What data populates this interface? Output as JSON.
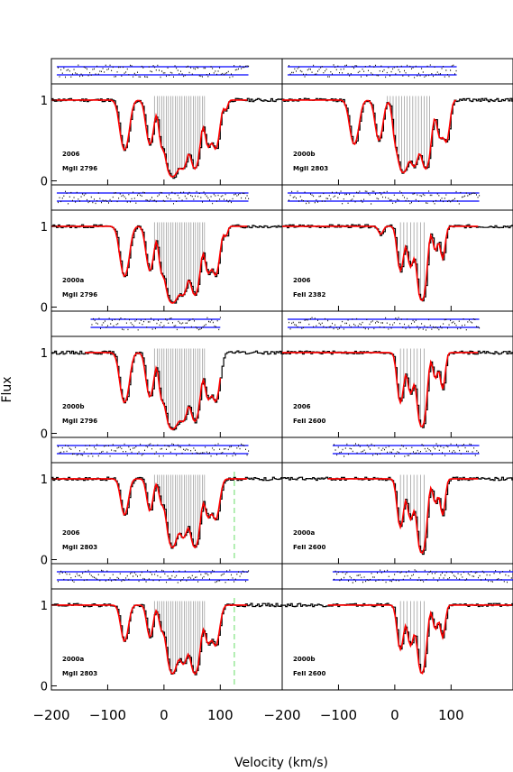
{
  "chart_data": {
    "type": "line",
    "xlabel": "Velocity (km/s)",
    "ylabel": "Flux",
    "xlim": [
      -200,
      210
    ],
    "ylim": [
      -0.05,
      1.2
    ],
    "yticks": [
      "0",
      "1"
    ],
    "xticks": [
      -200,
      -100,
      0,
      100
    ],
    "colors": {
      "data": "#000000",
      "model": "#ff0000",
      "residual_band": "#0000ff",
      "components": "#808080",
      "marker": "#66dd66"
    },
    "panels": [
      {
        "epoch": "2006",
        "ion": "MgII",
        "wavelength": "2796",
        "column": "left",
        "row": 0,
        "residual_range": [
          -200,
          150
        ],
        "components": [
          -17,
          -12,
          -8,
          -4,
          0,
          4,
          8,
          12,
          16,
          20,
          24,
          28,
          32,
          36,
          40,
          44,
          48,
          52,
          56,
          60,
          64,
          68,
          72
        ],
        "absorption": [
          {
            "v": -70,
            "depth": 0.62,
            "width": 7
          },
          {
            "v": -25,
            "depth": 0.55,
            "width": 6
          },
          {
            "v": -5,
            "depth": 0.45,
            "width": 4
          },
          {
            "v": 15,
            "depth": 0.95,
            "width": 9
          },
          {
            "v": 35,
            "depth": 0.8,
            "width": 6
          },
          {
            "v": 55,
            "depth": 0.85,
            "width": 7
          },
          {
            "v": 78,
            "depth": 0.55,
            "width": 5
          },
          {
            "v": 92,
            "depth": 0.6,
            "width": 6
          },
          {
            "v": 110,
            "depth": 0.12,
            "width": 3
          }
        ]
      },
      {
        "epoch": "2000b",
        "ion": "MgII",
        "wavelength": "2803",
        "column": "right",
        "row": 0,
        "residual_range": [
          -200,
          110
        ],
        "components": [
          -13,
          -8,
          -3,
          2,
          7,
          12,
          17,
          22,
          27,
          32,
          37,
          42,
          47,
          52,
          57,
          62
        ],
        "absorption": [
          {
            "v": -72,
            "depth": 0.55,
            "width": 7
          },
          {
            "v": -28,
            "depth": 0.5,
            "width": 6
          },
          {
            "v": 0,
            "depth": 0.3,
            "width": 4
          },
          {
            "v": 15,
            "depth": 0.9,
            "width": 8
          },
          {
            "v": 35,
            "depth": 0.8,
            "width": 6
          },
          {
            "v": 55,
            "depth": 0.85,
            "width": 7
          },
          {
            "v": 80,
            "depth": 0.45,
            "width": 5
          },
          {
            "v": 92,
            "depth": 0.5,
            "width": 5
          }
        ]
      },
      {
        "epoch": "2000a",
        "ion": "MgII",
        "wavelength": "2796",
        "column": "left",
        "row": 1,
        "residual_range": [
          -200,
          150
        ],
        "components": [
          -17,
          -12,
          -8,
          -4,
          0,
          4,
          8,
          12,
          16,
          20,
          24,
          28,
          32,
          36,
          40,
          44,
          48,
          52,
          56,
          60,
          64,
          68,
          72
        ],
        "absorption": [
          {
            "v": -70,
            "depth": 0.62,
            "width": 7
          },
          {
            "v": -25,
            "depth": 0.55,
            "width": 6
          },
          {
            "v": -5,
            "depth": 0.45,
            "width": 4
          },
          {
            "v": 15,
            "depth": 0.95,
            "width": 9
          },
          {
            "v": 35,
            "depth": 0.8,
            "width": 6
          },
          {
            "v": 55,
            "depth": 0.85,
            "width": 7
          },
          {
            "v": 78,
            "depth": 0.55,
            "width": 5
          },
          {
            "v": 92,
            "depth": 0.6,
            "width": 6
          },
          {
            "v": 110,
            "depth": 0.12,
            "width": 3
          }
        ]
      },
      {
        "epoch": "2006",
        "ion": "FeII",
        "wavelength": "2382",
        "column": "right",
        "row": 1,
        "residual_range": [
          -200,
          150
        ],
        "components": [
          10,
          16,
          22,
          28,
          34,
          40,
          46,
          52
        ],
        "absorption": [
          {
            "v": -25,
            "depth": 0.1,
            "width": 4
          },
          {
            "v": 10,
            "depth": 0.55,
            "width": 5
          },
          {
            "v": 28,
            "depth": 0.5,
            "width": 5
          },
          {
            "v": 48,
            "depth": 0.92,
            "width": 6
          },
          {
            "v": 72,
            "depth": 0.3,
            "width": 4
          },
          {
            "v": 85,
            "depth": 0.4,
            "width": 4
          }
        ]
      },
      {
        "epoch": "2000b",
        "ion": "MgII",
        "wavelength": "2796",
        "column": "left",
        "row": 2,
        "residual_range": [
          -140,
          100
        ],
        "components": [
          -17,
          -12,
          -8,
          -4,
          0,
          4,
          8,
          12,
          16,
          20,
          24,
          28,
          32,
          36,
          40,
          44,
          48,
          52,
          56,
          60,
          64,
          68,
          72
        ],
        "absorption": [
          {
            "v": -70,
            "depth": 0.62,
            "width": 7
          },
          {
            "v": -25,
            "depth": 0.55,
            "width": 6
          },
          {
            "v": -5,
            "depth": 0.45,
            "width": 4
          },
          {
            "v": 15,
            "depth": 0.95,
            "width": 9
          },
          {
            "v": 35,
            "depth": 0.8,
            "width": 6
          },
          {
            "v": 55,
            "depth": 0.85,
            "width": 7
          },
          {
            "v": 78,
            "depth": 0.55,
            "width": 5
          },
          {
            "v": 92,
            "depth": 0.6,
            "width": 6
          }
        ]
      },
      {
        "epoch": "2006",
        "ion": "FeII",
        "wavelength": "2600",
        "column": "right",
        "row": 2,
        "residual_range": [
          -200,
          150
        ],
        "components": [
          10,
          16,
          22,
          28,
          34,
          40,
          46,
          52
        ],
        "absorption": [
          {
            "v": 10,
            "depth": 0.62,
            "width": 5
          },
          {
            "v": 28,
            "depth": 0.5,
            "width": 5
          },
          {
            "v": 48,
            "depth": 0.92,
            "width": 6
          },
          {
            "v": 72,
            "depth": 0.32,
            "width": 4
          },
          {
            "v": 85,
            "depth": 0.45,
            "width": 4
          }
        ]
      },
      {
        "epoch": "2006",
        "ion": "MgII",
        "wavelength": "2803",
        "column": "left",
        "row": 3,
        "residual_range": [
          -200,
          150
        ],
        "marker_velocity": 125,
        "components": [
          -17,
          -12,
          -8,
          -4,
          0,
          4,
          8,
          12,
          16,
          20,
          24,
          28,
          32,
          36,
          40,
          44,
          48,
          52,
          56,
          60,
          64,
          68,
          72
        ],
        "absorption": [
          {
            "v": -70,
            "depth": 0.45,
            "width": 6
          },
          {
            "v": -25,
            "depth": 0.4,
            "width": 5
          },
          {
            "v": -5,
            "depth": 0.25,
            "width": 4
          },
          {
            "v": 15,
            "depth": 0.85,
            "width": 8
          },
          {
            "v": 35,
            "depth": 0.7,
            "width": 6
          },
          {
            "v": 55,
            "depth": 0.85,
            "width": 7
          },
          {
            "v": 78,
            "depth": 0.45,
            "width": 5
          },
          {
            "v": 92,
            "depth": 0.5,
            "width": 6
          }
        ]
      },
      {
        "epoch": "2000a",
        "ion": "FeII",
        "wavelength": "2600",
        "column": "right",
        "row": 3,
        "residual_range": [
          -120,
          150
        ],
        "components": [
          10,
          16,
          22,
          28,
          34,
          40,
          46,
          52
        ],
        "absorption": [
          {
            "v": 10,
            "depth": 0.6,
            "width": 5
          },
          {
            "v": 28,
            "depth": 0.5,
            "width": 5
          },
          {
            "v": 48,
            "depth": 0.92,
            "width": 6
          },
          {
            "v": 72,
            "depth": 0.3,
            "width": 4
          },
          {
            "v": 85,
            "depth": 0.45,
            "width": 4
          }
        ]
      },
      {
        "epoch": "2000a",
        "ion": "MgII",
        "wavelength": "2803",
        "column": "left",
        "row": 4,
        "residual_range": [
          -200,
          150
        ],
        "marker_velocity": 125,
        "components": [
          -17,
          -12,
          -8,
          -4,
          0,
          4,
          8,
          12,
          16,
          20,
          24,
          28,
          32,
          36,
          40,
          44,
          48,
          52,
          56,
          60,
          64,
          68,
          72
        ],
        "absorption": [
          {
            "v": -70,
            "depth": 0.45,
            "width": 6
          },
          {
            "v": -25,
            "depth": 0.4,
            "width": 5
          },
          {
            "v": -5,
            "depth": 0.25,
            "width": 4
          },
          {
            "v": 15,
            "depth": 0.85,
            "width": 8
          },
          {
            "v": 35,
            "depth": 0.7,
            "width": 6
          },
          {
            "v": 55,
            "depth": 0.85,
            "width": 7
          },
          {
            "v": 78,
            "depth": 0.45,
            "width": 5
          },
          {
            "v": 92,
            "depth": 0.5,
            "width": 6
          }
        ]
      },
      {
        "epoch": "2000b",
        "ion": "FeII",
        "wavelength": "2600",
        "column": "right",
        "row": 4,
        "residual_range": [
          -120,
          210
        ],
        "components": [
          10,
          16,
          22,
          28,
          34,
          40,
          46,
          52
        ],
        "absorption": [
          {
            "v": 10,
            "depth": 0.55,
            "width": 5
          },
          {
            "v": 28,
            "depth": 0.5,
            "width": 5
          },
          {
            "v": 48,
            "depth": 0.85,
            "width": 6
          },
          {
            "v": 72,
            "depth": 0.3,
            "width": 4
          },
          {
            "v": 85,
            "depth": 0.4,
            "width": 4
          }
        ]
      }
    ]
  }
}
